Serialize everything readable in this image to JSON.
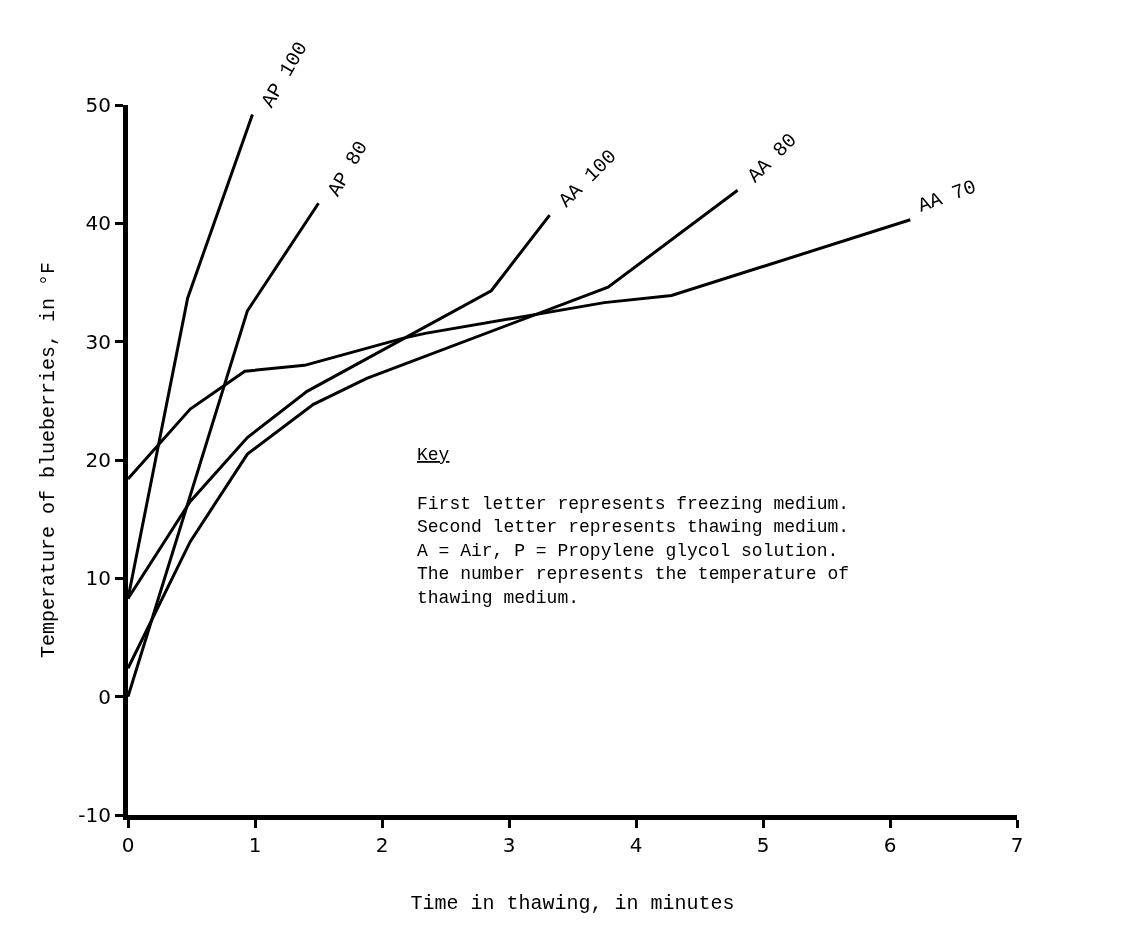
{
  "chart_data": {
    "type": "line",
    "xlabel": "Time in thawing, in minutes",
    "ylabel": "Temperature of blueberries, in °F",
    "xlim": [
      0,
      7
    ],
    "xticks": [
      0,
      1,
      2,
      3,
      4,
      5,
      6,
      7
    ],
    "ylim": [
      -10,
      50
    ],
    "yticks": [
      -10,
      0,
      10,
      20,
      30,
      40,
      50
    ],
    "legend": false,
    "marker": "none",
    "line_style": "solid",
    "series": [
      {
        "name": "AP 100",
        "color": "#000000",
        "x": [
          0,
          0.47,
          0.98
        ],
        "values": [
          8.3,
          33.7,
          49.2
        ]
      },
      {
        "name": "AP 80",
        "color": "#000000",
        "x": [
          0,
          0.94,
          1.5
        ],
        "values": [
          0,
          32.6,
          41.7
        ]
      },
      {
        "name": "AA 100",
        "color": "#000000",
        "x": [
          0,
          0.49,
          0.94,
          1.41,
          2.86,
          3.32
        ],
        "values": [
          8.3,
          16.5,
          21.9,
          25.8,
          34.3,
          40.7
        ]
      },
      {
        "name": "AA 80",
        "color": "#000000",
        "x": [
          0,
          0.49,
          0.94,
          1.46,
          1.88,
          3.78,
          4.8
        ],
        "values": [
          2.4,
          13.1,
          20.5,
          24.7,
          26.9,
          34.6,
          42.8
        ]
      },
      {
        "name": "AA 70",
        "color": "#000000",
        "x": [
          0,
          0.49,
          0.92,
          1.39,
          2.17,
          2.34,
          3.75,
          4.28,
          6.16
        ],
        "values": [
          18.4,
          24.3,
          27.5,
          28.0,
          30.3,
          30.7,
          33.3,
          33.9,
          40.3
        ]
      }
    ],
    "annotations": [
      "Key",
      "First letter represents freezing medium.\nSecond letter represents thawing medium.\nA = Air, P = Propylene glycol solution.\nThe number represents the temperature of\nthawing medium."
    ]
  }
}
